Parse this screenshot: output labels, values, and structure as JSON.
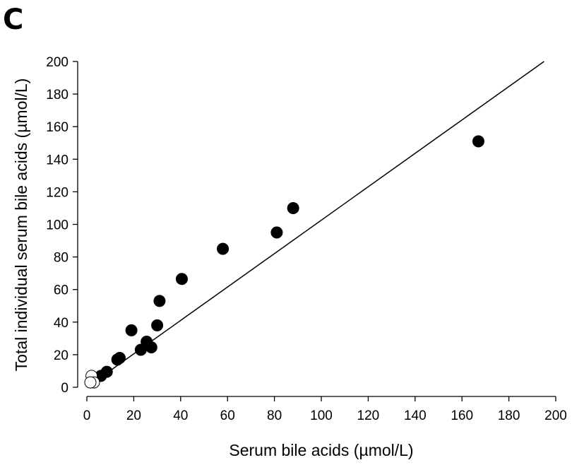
{
  "panel_label": "C",
  "chart_data": {
    "type": "scatter",
    "xlabel": "Serum bile acids (µmol/L)",
    "ylabel": "Total individual serum bile acids (µmol/L)",
    "xlim": [
      0,
      200
    ],
    "ylim": [
      0,
      200
    ],
    "x_ticks": [
      "0",
      "20",
      "40",
      "60",
      "80",
      "100",
      "120",
      "140",
      "160",
      "180",
      "200"
    ],
    "y_ticks": [
      "0",
      "20",
      "40",
      "60",
      "80",
      "100",
      "120",
      "140",
      "160",
      "180",
      "200"
    ],
    "grid": false,
    "legend": "none",
    "reference_line": {
      "x": [
        0,
        195
      ],
      "y": [
        0,
        200
      ]
    },
    "series": [
      {
        "marker": "filled",
        "points": [
          [
            6,
            7
          ],
          [
            8.5,
            9.5
          ],
          [
            13,
            17
          ],
          [
            14,
            18
          ],
          [
            19,
            35
          ],
          [
            23,
            23
          ],
          [
            25.5,
            28
          ],
          [
            27.5,
            24.5
          ],
          [
            30,
            38
          ],
          [
            31,
            53
          ],
          [
            40.5,
            66.5
          ],
          [
            58,
            85
          ],
          [
            81,
            95
          ],
          [
            88,
            110
          ],
          [
            167,
            151
          ]
        ]
      },
      {
        "marker": "open",
        "points": [
          [
            2,
            7
          ],
          [
            3,
            3
          ],
          [
            1.5,
            3
          ]
        ]
      }
    ]
  }
}
